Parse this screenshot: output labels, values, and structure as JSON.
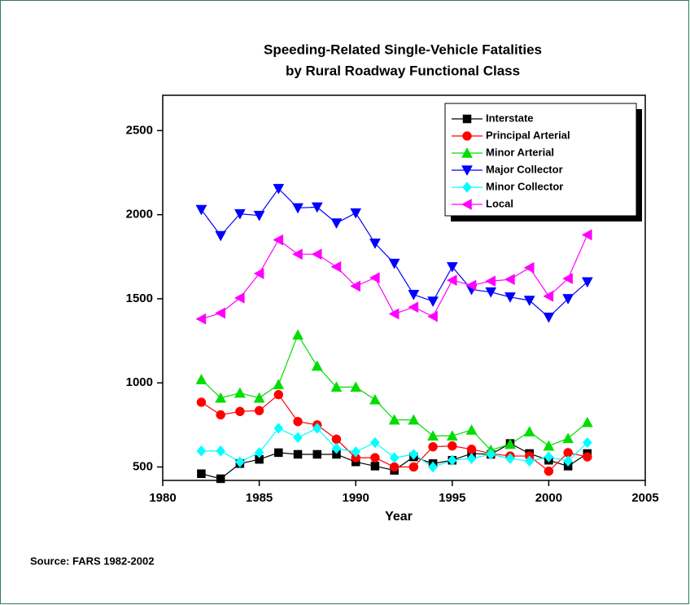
{
  "chart_data": {
    "type": "line",
    "title": [
      "Speeding-Related Single-Vehicle Fatalities",
      "by Rural Roadway Functional Class"
    ],
    "x_label": "Year",
    "source": "Source: FARS 1982-2002",
    "x": [
      1982,
      1983,
      1984,
      1985,
      1986,
      1987,
      1988,
      1989,
      1990,
      1991,
      1992,
      1993,
      1994,
      1995,
      1996,
      1997,
      1998,
      1999,
      2000,
      2001,
      2002
    ],
    "series": [
      {
        "name": "Interstate",
        "color": "#000000",
        "marker": "square",
        "values": [
          460,
          430,
          520,
          545,
          585,
          575,
          575,
          575,
          530,
          505,
          480,
          560,
          520,
          540,
          580,
          575,
          640,
          580,
          540,
          505,
          580
        ]
      },
      {
        "name": "Principal Arterial",
        "color": "#ff0000",
        "marker": "circle",
        "values": [
          885,
          810,
          830,
          835,
          930,
          770,
          750,
          665,
          555,
          555,
          500,
          500,
          620,
          625,
          605,
          580,
          565,
          565,
          475,
          585,
          560
        ]
      },
      {
        "name": "Minor Arterial",
        "color": "#00dd00",
        "marker": "triangle-up",
        "values": [
          1020,
          910,
          940,
          910,
          990,
          1285,
          1100,
          975,
          975,
          900,
          780,
          780,
          685,
          685,
          720,
          600,
          635,
          710,
          625,
          670,
          765
        ]
      },
      {
        "name": "Major Collector",
        "color": "#0000ff",
        "marker": "triangle-down",
        "values": [
          2030,
          1875,
          2005,
          1995,
          2155,
          2040,
          2045,
          1950,
          2010,
          1830,
          1710,
          1525,
          1485,
          1690,
          1555,
          1540,
          1510,
          1490,
          1390,
          1500,
          1600
        ]
      },
      {
        "name": "Minor Collector",
        "color": "#00ffff",
        "marker": "diamond",
        "values": [
          595,
          595,
          530,
          585,
          730,
          675,
          730,
          610,
          590,
          645,
          555,
          575,
          500,
          540,
          550,
          575,
          550,
          535,
          560,
          535,
          645
        ]
      },
      {
        "name": "Local",
        "color": "#ff00ff",
        "marker": "triangle-left",
        "values": [
          1380,
          1415,
          1505,
          1650,
          1850,
          1765,
          1765,
          1690,
          1575,
          1625,
          1410,
          1450,
          1395,
          1610,
          1580,
          1605,
          1615,
          1685,
          1515,
          1620,
          1880
        ]
      }
    ],
    "xlim": [
      1980,
      2005
    ],
    "xticks": [
      1980,
      1985,
      1990,
      1995,
      2000,
      2005
    ],
    "ylim": [
      420,
      2710
    ],
    "yticks": [
      500,
      1000,
      1500,
      2000,
      2500
    ],
    "grid": false,
    "legend": "upper right"
  }
}
